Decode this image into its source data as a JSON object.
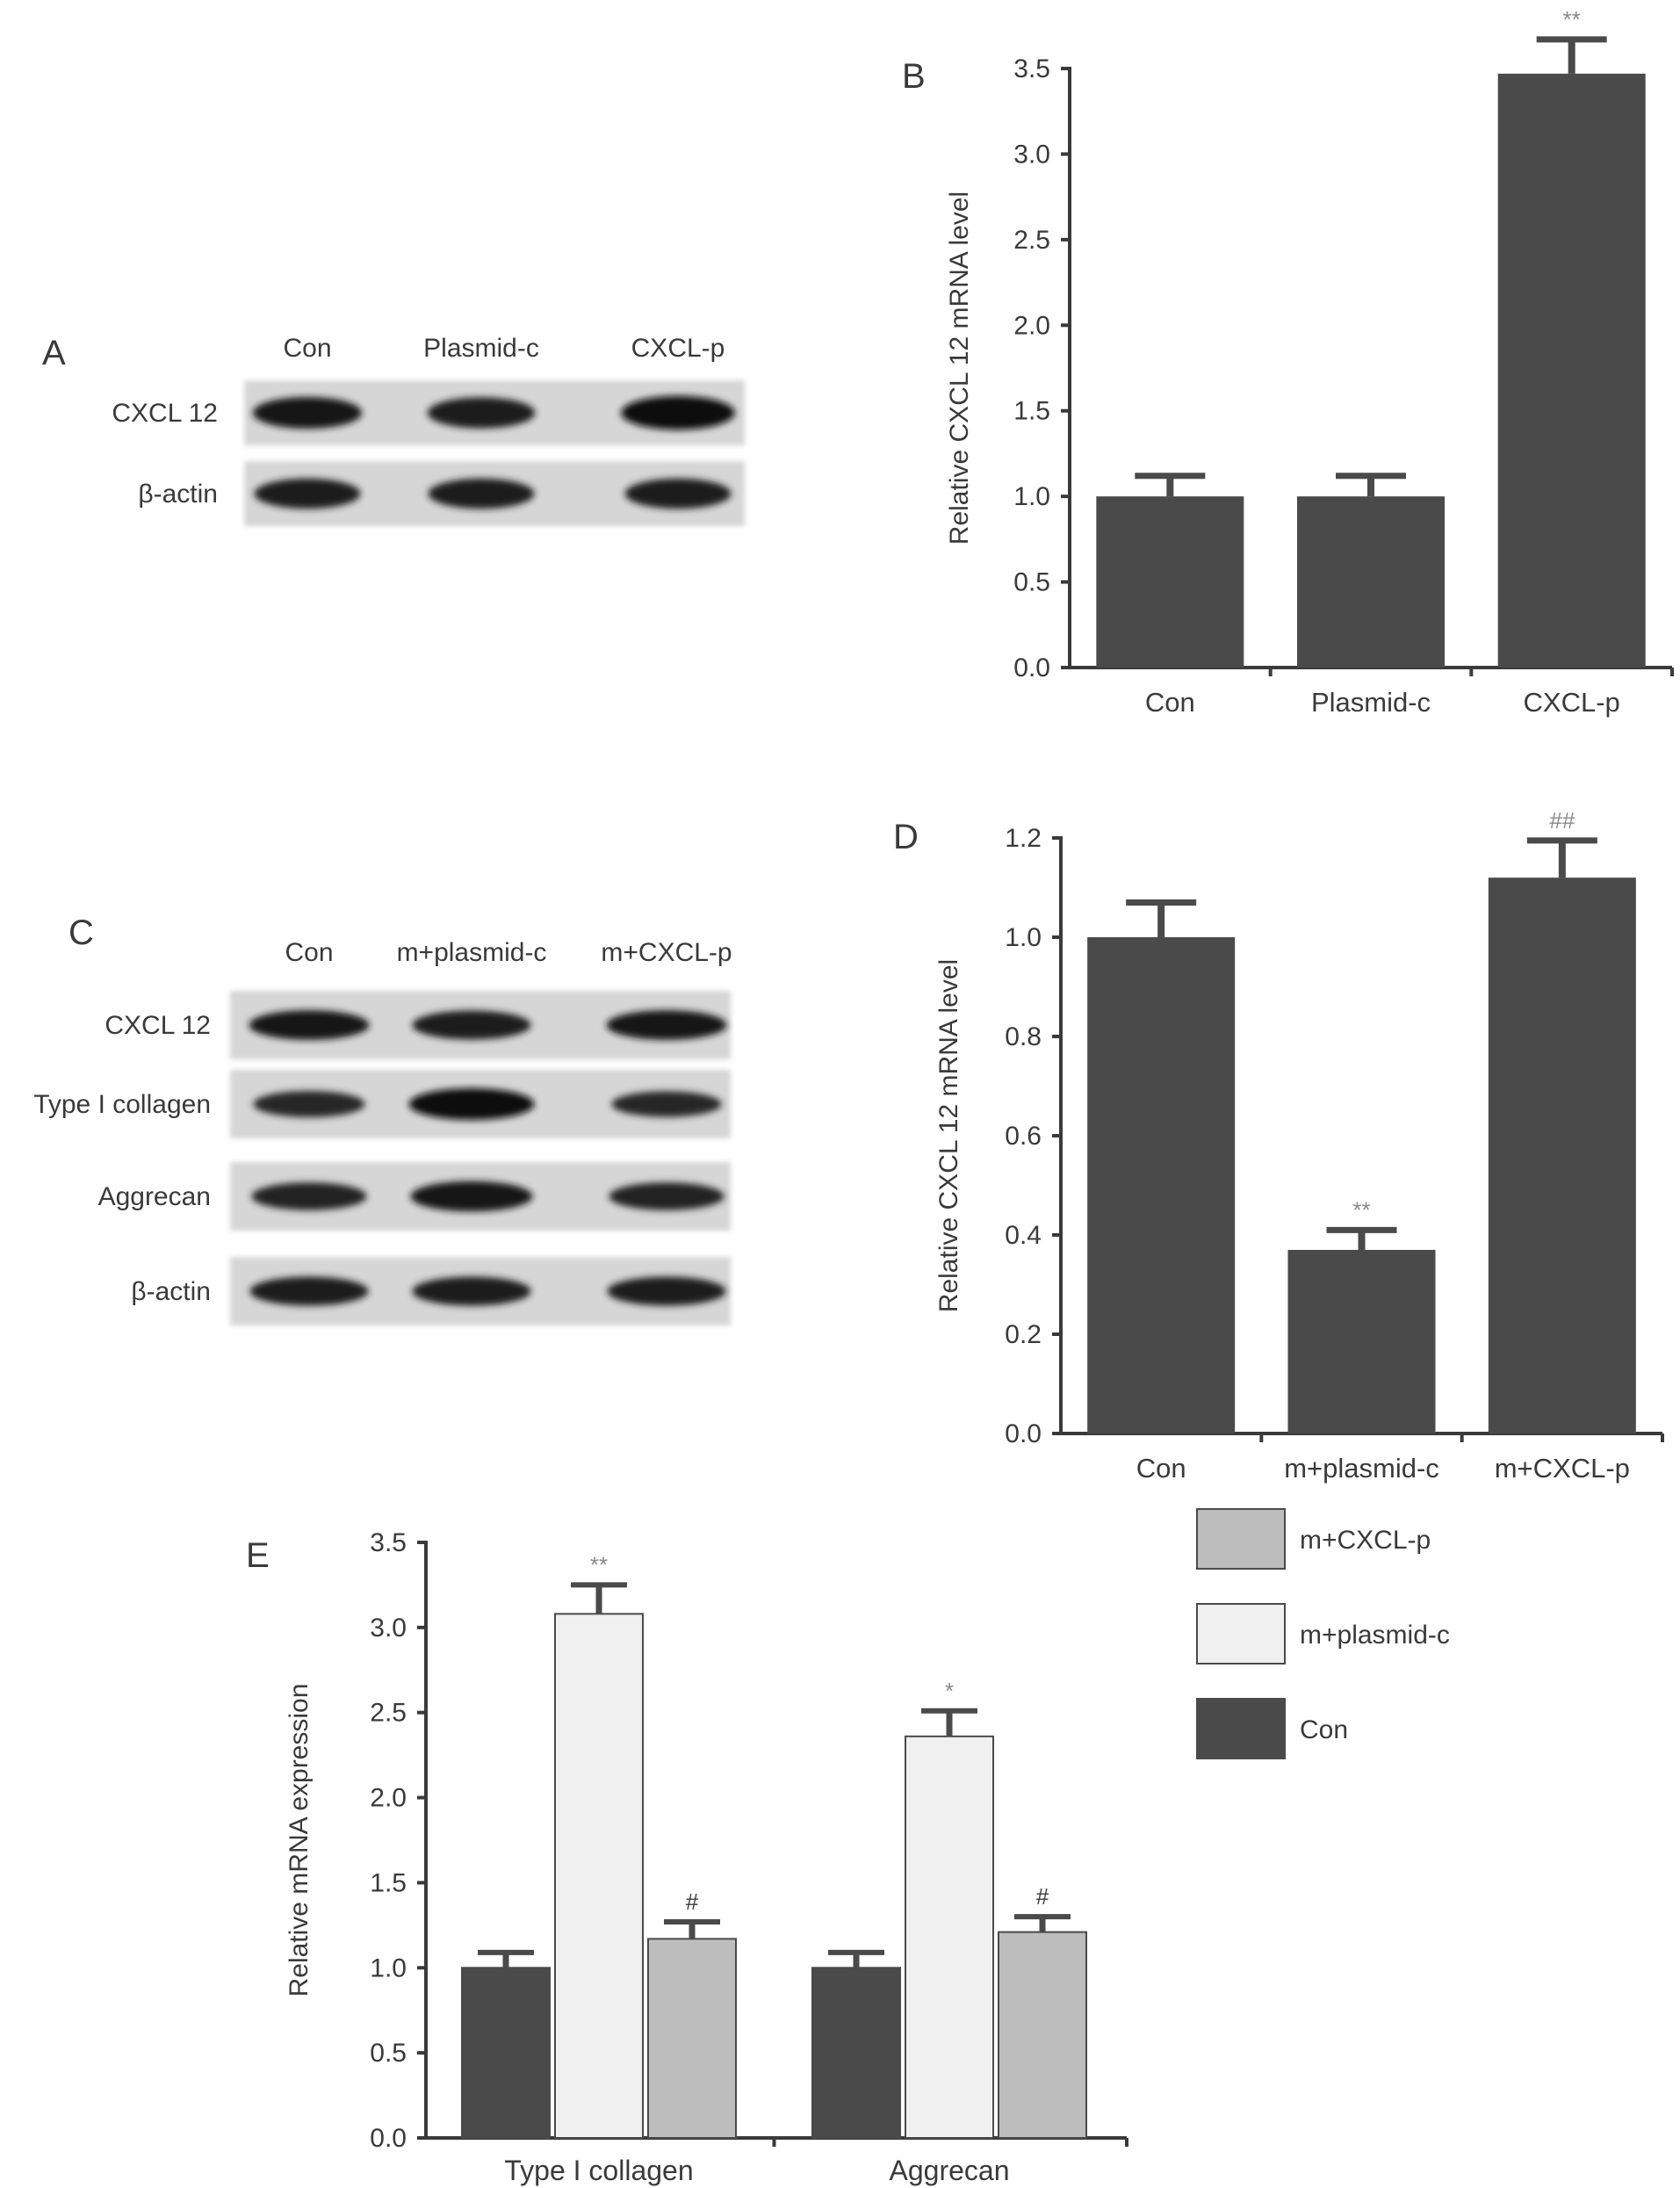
{
  "panels": {
    "A": {
      "label": "A",
      "lanes": [
        "Con",
        "Plasmid-c",
        "CXCL-p"
      ],
      "rows": [
        {
          "label": "CXCL 12",
          "intensity": [
            0.85,
            0.8,
            1.0
          ]
        },
        {
          "label": "β-actin",
          "intensity": [
            0.75,
            0.75,
            0.75
          ]
        }
      ]
    },
    "C": {
      "label": "C",
      "lanes": [
        "Con",
        "m+plasmid-c",
        "m+CXCL-p"
      ],
      "rows": [
        {
          "label": "CXCL 12",
          "intensity": [
            0.85,
            0.8,
            0.85
          ]
        },
        {
          "label": "Type I collagen",
          "intensity": [
            0.6,
            1.0,
            0.55
          ]
        },
        {
          "label": "Aggrecan",
          "intensity": [
            0.7,
            0.9,
            0.7
          ]
        },
        {
          "label": "β-actin",
          "intensity": [
            0.8,
            0.8,
            0.8
          ]
        }
      ]
    }
  },
  "chart_data": [
    {
      "panel": "B",
      "type": "bar",
      "ylabel": "Relative CXCL 12 mRNA level",
      "categories": [
        "Con",
        "Plasmid-c",
        "CXCL-p"
      ],
      "values": [
        1.0,
        1.0,
        3.47
      ],
      "errors": [
        0.12,
        0.12,
        0.2
      ],
      "annotations": [
        "",
        "",
        "**"
      ],
      "ylim": [
        0,
        3.5
      ],
      "yticks": [
        "0.0",
        "0.5",
        "1.0",
        "1.5",
        "2.0",
        "2.5",
        "3.0",
        "3.5"
      ],
      "color": "#4a4a4a"
    },
    {
      "panel": "D",
      "type": "bar",
      "ylabel": "Relative CXCL 12 mRNA level",
      "categories": [
        "Con",
        "m+plasmid-c",
        "m+CXCL-p"
      ],
      "values": [
        1.0,
        0.37,
        1.12
      ],
      "errors": [
        0.07,
        0.04,
        0.075
      ],
      "annotations": [
        "",
        "**",
        "##"
      ],
      "ylim": [
        0,
        1.2
      ],
      "yticks": [
        "0.0",
        "0.2",
        "0.4",
        "0.6",
        "0.8",
        "1.0",
        "1.2"
      ],
      "color": "#4a4a4a"
    },
    {
      "panel": "E",
      "type": "bar",
      "ylabel": "Relative mRNA expression",
      "categories": [
        "Type I collagen",
        "Aggrecan"
      ],
      "series": [
        {
          "name": "Con",
          "values": [
            1.0,
            1.0
          ],
          "errors": [
            0.09,
            0.09
          ],
          "annotations": [
            "",
            ""
          ],
          "color": "#4a4a4a"
        },
        {
          "name": "m+plasmid-c",
          "values": [
            3.08,
            2.36
          ],
          "errors": [
            0.17,
            0.15
          ],
          "annotations": [
            "**",
            "*"
          ],
          "color": "#f0f0f0"
        },
        {
          "name": "m+CXCL-p",
          "values": [
            1.17,
            1.21
          ],
          "errors": [
            0.1,
            0.09
          ],
          "annotations": [
            "#",
            "#"
          ],
          "color": "#bdbdbd"
        }
      ],
      "legend_order": [
        "m+CXCL-p",
        "m+plasmid-c",
        "Con"
      ],
      "legend_position": "right",
      "ylim": [
        0,
        3.5
      ],
      "yticks": [
        "0.0",
        "0.5",
        "1.0",
        "1.5",
        "2.0",
        "2.5",
        "3.0",
        "3.5"
      ]
    }
  ]
}
